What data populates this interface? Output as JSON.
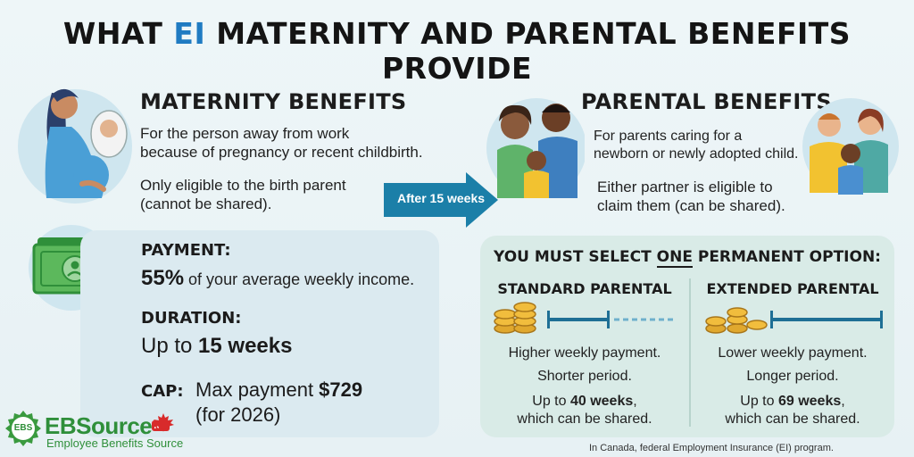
{
  "title": {
    "pre": "WHAT ",
    "ei": "EI",
    "post": " MATERNITY AND PARENTAL BENEFITS PROVIDE"
  },
  "maternity": {
    "heading": "MATERNITY BENEFITS",
    "line1": "For the person away from work",
    "line2": "because of pregnancy or recent childbirth.",
    "line3": "Only eligible to the birth parent",
    "line4": "(cannot be shared)."
  },
  "arrow": {
    "label": "After 15 weeks",
    "color": "#1b7fa8"
  },
  "parental": {
    "heading": "PARENTAL BENEFITS",
    "line1": "For parents caring for a",
    "line2": "newborn or newly adopted child.",
    "line3": "Either partner is eligible to",
    "line4": "claim them (can be shared)."
  },
  "payment": {
    "label": "PAYMENT:",
    "pct": "55%",
    "pct_rest": " of your average weekly income.",
    "duration_label": "DURATION:",
    "duration_pre": "Up to ",
    "duration_val": "15 weeks",
    "cap_label": "CAP:",
    "cap_pre": "Max payment ",
    "cap_val": "$729",
    "cap_note": "(for 2026)"
  },
  "options": {
    "heading_pre": "YOU MUST SELECT ",
    "heading_one": "ONE",
    "heading_post": " PERMANENT OPTION:",
    "standard": {
      "heading": "STANDARD PARENTAL",
      "l1": "Higher weekly payment.",
      "l2": "Shorter period.",
      "l3_pre": "Up to ",
      "l3_val": "40 weeks",
      "l3_post": ",",
      "l4": "which can be shared."
    },
    "extended": {
      "heading": "EXTENDED PARENTAL",
      "l1": "Lower weekly payment.",
      "l2": "Longer period.",
      "l3_pre": "Up to ",
      "l3_val": "69 weeks",
      "l3_post": ",",
      "l4": "which can be shared."
    }
  },
  "logo": {
    "badge": "EBS",
    "name": "EBSource",
    "ca": ".ca",
    "sub": "Employee Benefits Source"
  },
  "footnote": "In Canada, federal Employment Insurance (EI) program.",
  "colors": {
    "accent_blue": "#1f7bc2",
    "bar_blue": "#1e6f95",
    "money_green": "#3fa34d",
    "logo_green": "#2f8f3a"
  }
}
